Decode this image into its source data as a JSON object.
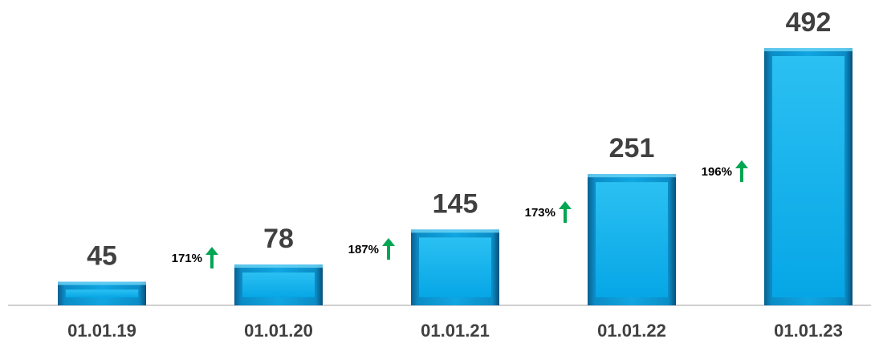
{
  "chart_data": {
    "type": "bar",
    "categories": [
      "01.01.19",
      "01.01.20",
      "01.01.21",
      "01.01.22",
      "01.01.23"
    ],
    "values": [
      45,
      78,
      145,
      251,
      492
    ],
    "color": "#0aa0dc",
    "ylim": [
      0,
      492
    ],
    "annotations": [
      "171%",
      "187%",
      "173%",
      "196%"
    ]
  }
}
